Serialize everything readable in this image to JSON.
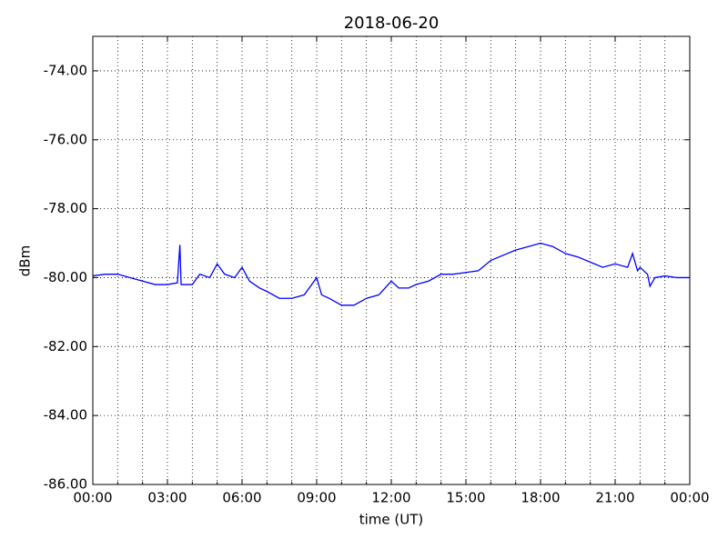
{
  "chart_data": {
    "type": "line",
    "title": "2018-06-20",
    "x_label": "time (UT)",
    "y_label": "dBm",
    "x": [
      0,
      0.5,
      1,
      1.5,
      2,
      2.5,
      3,
      3.4,
      3.5,
      3.55,
      4,
      4.3,
      4.7,
      5,
      5.3,
      5.7,
      6,
      6.3,
      6.7,
      7,
      7.5,
      8,
      8.5,
      9,
      9.2,
      9.5,
      10,
      10.5,
      11,
      11.5,
      12,
      12.3,
      12.7,
      13,
      13.5,
      14,
      14.5,
      15,
      15.5,
      16,
      16.5,
      17,
      17.5,
      18,
      18.5,
      19,
      19.5,
      20,
      20.5,
      21,
      21.5,
      21.7,
      21.9,
      22,
      22.3,
      22.4,
      22.6,
      23,
      23.5,
      24
    ],
    "series": [
      {
        "color": "#0000ff",
        "values": [
          -79.95,
          -79.9,
          -79.9,
          -80.0,
          -80.1,
          -80.2,
          -80.2,
          -80.15,
          -79.05,
          -80.2,
          -80.2,
          -79.9,
          -80.0,
          -79.6,
          -79.9,
          -80.0,
          -79.7,
          -80.1,
          -80.3,
          -80.4,
          -80.6,
          -80.6,
          -80.5,
          -80.0,
          -80.5,
          -80.6,
          -80.8,
          -80.8,
          -80.6,
          -80.5,
          -80.1,
          -80.3,
          -80.3,
          -80.2,
          -80.1,
          -79.9,
          -79.9,
          -79.85,
          -79.8,
          -79.5,
          -79.35,
          -79.2,
          -79.1,
          -79.0,
          -79.1,
          -79.3,
          -79.4,
          -79.55,
          -79.7,
          -79.6,
          -79.7,
          -79.3,
          -79.8,
          -79.7,
          -79.9,
          -80.25,
          -80.0,
          -79.95,
          -80.0,
          -80.0
        ]
      }
    ],
    "xlim": [
      0,
      24
    ],
    "xticks": [
      {
        "value": 0,
        "label": "00:00"
      },
      {
        "value": 3,
        "label": "03:00"
      },
      {
        "value": 6,
        "label": "06:00"
      },
      {
        "value": 9,
        "label": "09:00"
      },
      {
        "value": 12,
        "label": "12:00"
      },
      {
        "value": 15,
        "label": "15:00"
      },
      {
        "value": 18,
        "label": "18:00"
      },
      {
        "value": 21,
        "label": "21:00"
      },
      {
        "value": 24,
        "label": "00:00"
      }
    ],
    "xminorticks": [
      1,
      2,
      4,
      5,
      7,
      8,
      10,
      11,
      13,
      14,
      16,
      17,
      19,
      20,
      22,
      23
    ],
    "ylim": [
      -86,
      -73
    ],
    "yticks": [
      {
        "value": -86,
        "label": "-86.00"
      },
      {
        "value": -84,
        "label": "-84.00"
      },
      {
        "value": -82,
        "label": "-82.00"
      },
      {
        "value": -80,
        "label": "-80.00"
      },
      {
        "value": -78,
        "label": "-78.00"
      },
      {
        "value": -76,
        "label": "-76.00"
      },
      {
        "value": -74,
        "label": "-74.00"
      }
    ],
    "grid": true
  }
}
